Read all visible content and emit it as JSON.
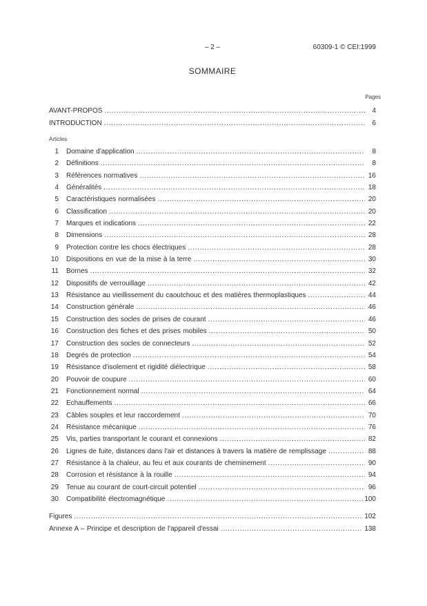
{
  "document": {
    "header": {
      "page_marker": "– 2 –",
      "reference": "60309-1 © CEI:1999"
    },
    "title": "SOMMAIRE",
    "pages_column_label": "Pages",
    "front_matter": [
      {
        "label": "AVANT-PROPOS",
        "page": "4"
      },
      {
        "label": "INTRODUCTION",
        "page": "6"
      }
    ],
    "articles_label": "Articles",
    "articles": [
      {
        "num": "1",
        "title": "Domaine d'application",
        "page": "8"
      },
      {
        "num": "2",
        "title": "Définitions",
        "page": "8"
      },
      {
        "num": "3",
        "title": "Références normatives",
        "page": "16"
      },
      {
        "num": "4",
        "title": "Généralités",
        "page": "18"
      },
      {
        "num": "5",
        "title": "Caractéristiques normalisées",
        "page": "20"
      },
      {
        "num": "6",
        "title": "Classification",
        "page": "20"
      },
      {
        "num": "7",
        "title": "Marques et indications",
        "page": "22"
      },
      {
        "num": "8",
        "title": "Dimensions",
        "page": "28"
      },
      {
        "num": "9",
        "title": "Protection contre les chocs électriques",
        "page": "28"
      },
      {
        "num": "10",
        "title": "Dispositions en vue de la mise à la terre",
        "page": "30"
      },
      {
        "num": "11",
        "title": "Bornes",
        "page": "32"
      },
      {
        "num": "12",
        "title": "Dispositifs de verrouillage",
        "page": "42"
      },
      {
        "num": "13",
        "title": "Résistance au vieillissement du caoutchouc et des matières thermoplastiques",
        "page": "44"
      },
      {
        "num": "14",
        "title": "Construction générale",
        "page": "46"
      },
      {
        "num": "15",
        "title": "Construction des socles de prises de courant",
        "page": "46"
      },
      {
        "num": "16",
        "title": "Construction des fiches et des prises mobiles",
        "page": "50"
      },
      {
        "num": "17",
        "title": "Construction des socles de connecteurs",
        "page": "52"
      },
      {
        "num": "18",
        "title": "Degrés de protection",
        "page": "54"
      },
      {
        "num": "19",
        "title": "Résistance d'isolement et rigidité diélectrique",
        "page": "58"
      },
      {
        "num": "20",
        "title": "Pouvoir de coupure",
        "page": "60"
      },
      {
        "num": "21",
        "title": "Fonctionnement normal",
        "page": "64"
      },
      {
        "num": "22",
        "title": "Echauffements",
        "page": "66"
      },
      {
        "num": "23",
        "title": "Câbles souples et leur raccordement",
        "page": "70"
      },
      {
        "num": "24",
        "title": "Résistance mécanique",
        "page": "76"
      },
      {
        "num": "25",
        "title": "Vis, parties transportant le courant et connexions",
        "page": "82"
      },
      {
        "num": "26",
        "title": "Lignes de fuite, distances dans l'air et distances à travers la matière de remplissage",
        "page": "88"
      },
      {
        "num": "27",
        "title": "Résistance à la chaleur, au feu et aux courants de cheminement",
        "page": "90"
      },
      {
        "num": "28",
        "title": "Corrosion et résistance à la rouille",
        "page": "94"
      },
      {
        "num": "29",
        "title": "Tenue au courant de court-circuit potentiel",
        "page": "96"
      },
      {
        "num": "30",
        "title": "Compatibilité électromagnétique",
        "page": "100"
      }
    ],
    "back_matter": [
      {
        "label": "Figures",
        "page": "102"
      },
      {
        "label": "Annexe A – Principe et description de l'appareil d'essai",
        "page": "138"
      }
    ]
  }
}
